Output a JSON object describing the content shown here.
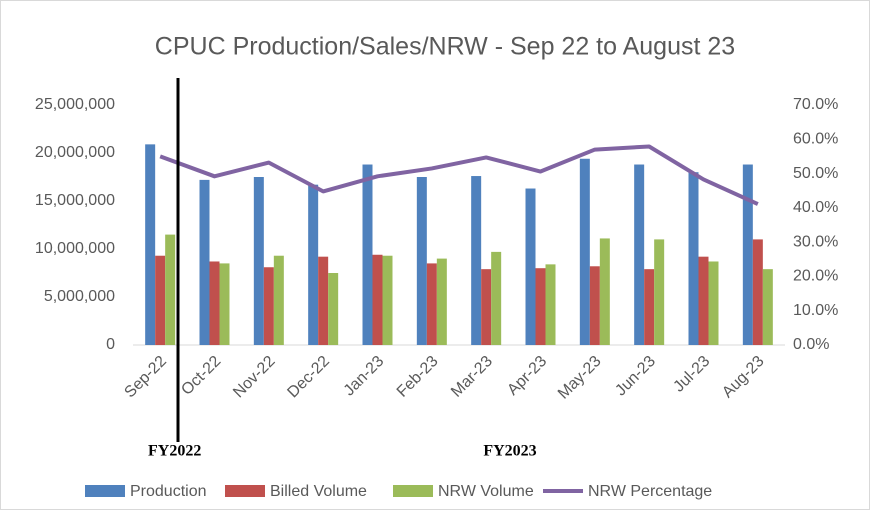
{
  "chart_data": {
    "type": "bar_line",
    "title": "CPUC Production/Sales/NRW - Sep 22 to August 23",
    "categories": [
      "Sep-22",
      "Oct-22",
      "Nov-22",
      "Dec-22",
      "Jan-23",
      "Feb-23",
      "Mar-23",
      "Apr-23",
      "May-23",
      "Jun-23",
      "Jul-23",
      "Aug-23"
    ],
    "series": [
      {
        "name": "Production",
        "color": "#4f81bd",
        "kind": "bar",
        "values": [
          20900000,
          17200000,
          17500000,
          16700000,
          18800000,
          17500000,
          17600000,
          16300000,
          19400000,
          18800000,
          18000000,
          18800000
        ]
      },
      {
        "name": "Billed Volume",
        "color": "#c0504d",
        "kind": "bar",
        "values": [
          9300000,
          8700000,
          8100000,
          9200000,
          9400000,
          8500000,
          7900000,
          8000000,
          8200000,
          7900000,
          9200000,
          11000000
        ]
      },
      {
        "name": "NRW Volume",
        "color": "#9bbb59",
        "kind": "bar",
        "values": [
          11500000,
          8500000,
          9300000,
          7500000,
          9300000,
          9000000,
          9700000,
          8400000,
          11100000,
          11000000,
          8700000,
          7900000
        ]
      },
      {
        "name": "NRW Percentage",
        "color": "#8064a2",
        "kind": "line",
        "axis": "y2",
        "values": [
          55.0,
          49.2,
          53.2,
          44.8,
          49.2,
          51.5,
          54.7,
          50.6,
          57.0,
          57.9,
          48.3,
          41.1
        ]
      }
    ],
    "ylim": [
      0,
      25000000
    ],
    "yticks": [
      0,
      {
        "value": 5000000,
        "label": "5,000,000"
      },
      {
        "value": 10000000,
        "label": "10,000,000"
      },
      {
        "value": 15000000,
        "label": "15,000,000"
      },
      {
        "value": 20000000,
        "label": "20,000,000"
      },
      {
        "value": 25000000,
        "label": "25,000,000"
      }
    ],
    "y2lim": [
      0,
      70
    ],
    "y2ticks": [
      {
        "value": 0,
        "label": "0.0%"
      },
      {
        "value": 10,
        "label": "10.0%"
      },
      {
        "value": 20,
        "label": "20.0%"
      },
      {
        "value": 30,
        "label": "30.0%"
      },
      {
        "value": 40,
        "label": "40.0%"
      },
      {
        "value": 50,
        "label": "50.0%"
      },
      {
        "value": 60,
        "label": "60.0%"
      },
      {
        "value": 70,
        "label": "70.0%"
      }
    ],
    "annotations": [
      "FY2022",
      "FY2023"
    ],
    "legend": "bottom"
  }
}
